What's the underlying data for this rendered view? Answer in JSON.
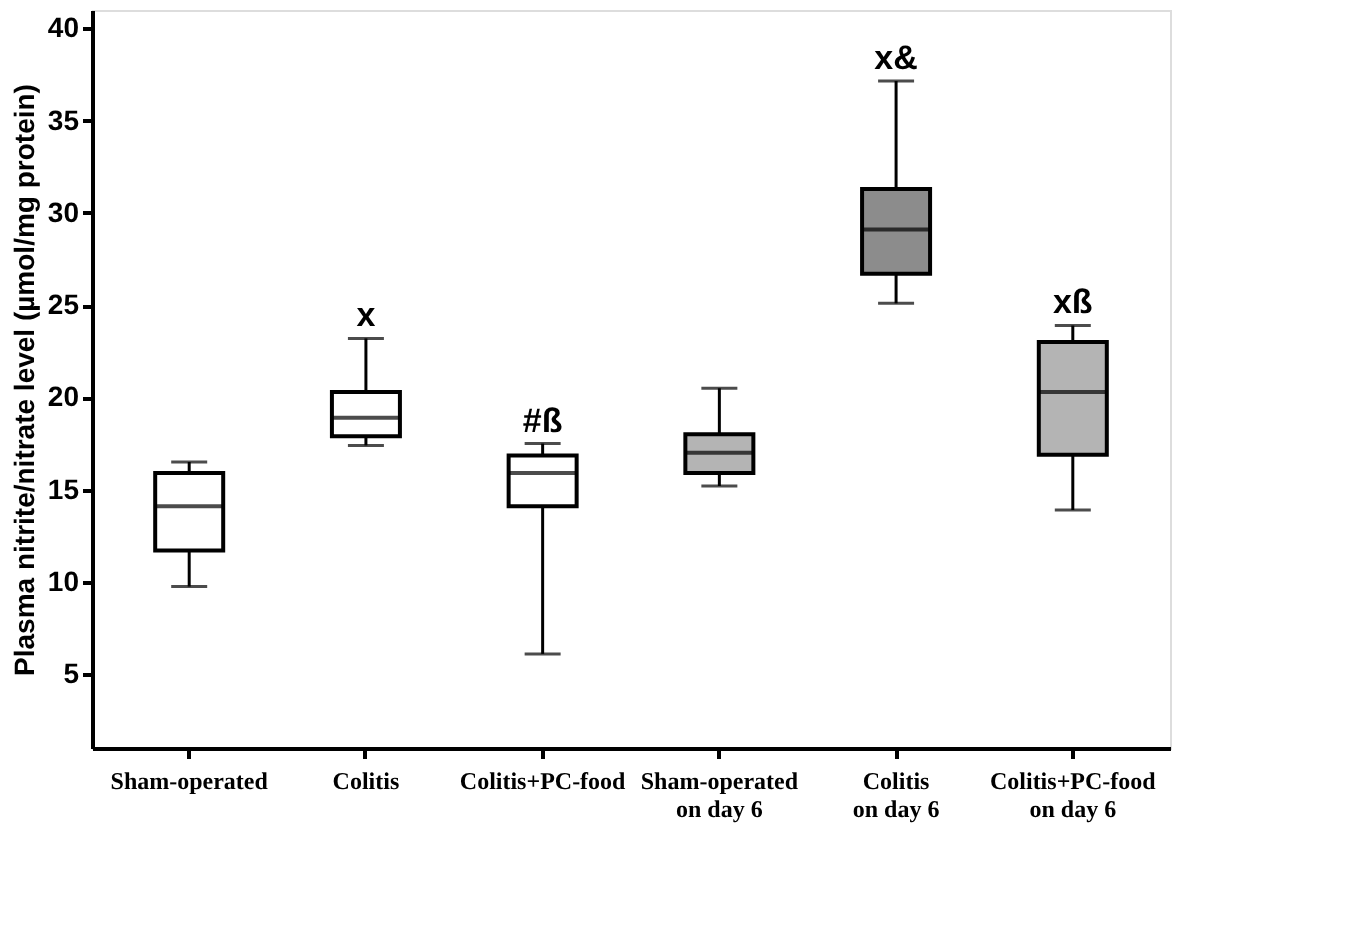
{
  "chart_data": {
    "type": "box",
    "ylabel": "Plasma nitrite/nitrate level (µmol/mg protein)",
    "categories": [
      "Sham-operated",
      "Colitis",
      "Colitis+PC-food",
      "Sham-operated\non day 6",
      "Colitis\non day 6",
      "Colitis+PC-food\non day 6"
    ],
    "boxes": [
      {
        "low": 9.75,
        "q1": 11.7,
        "median": 14.1,
        "q3": 15.9,
        "high": 16.5
      },
      {
        "low": 17.4,
        "q1": 17.9,
        "median": 18.9,
        "q3": 20.3,
        "high": 23.2
      },
      {
        "low": 6.1,
        "q1": 14.1,
        "median": 15.9,
        "q3": 16.85,
        "high": 17.5
      },
      {
        "low": 15.2,
        "q1": 15.9,
        "median": 17.0,
        "q3": 18.0,
        "high": 20.5
      },
      {
        "low": 25.1,
        "q1": 26.7,
        "median": 29.1,
        "q3": 31.3,
        "high": 37.15
      },
      {
        "low": 13.9,
        "q1": 16.9,
        "median": 20.3,
        "q3": 23.0,
        "high": 23.9
      }
    ],
    "colors": [
      "#ffffff",
      "#ffffff",
      "#ffffff",
      "#b4b4b4",
      "#8c8c8c",
      "#b4b4b4"
    ],
    "annotations": [
      {
        "text": "x",
        "x": "Colitis",
        "y": 23.2
      },
      {
        "text": "#ß",
        "x": "Colitis+PC-food",
        "y": 17.5
      },
      {
        "text": "x&",
        "x": "Colitis\non day 6",
        "y": 37.15
      },
      {
        "text": "xß",
        "x": "Colitis+PC-food\non day 6",
        "y": 23.9
      }
    ],
    "ylim": [
      1,
      41
    ],
    "yticks": [
      5,
      10,
      15,
      20,
      25,
      30,
      35,
      40
    ],
    "grid": false
  }
}
